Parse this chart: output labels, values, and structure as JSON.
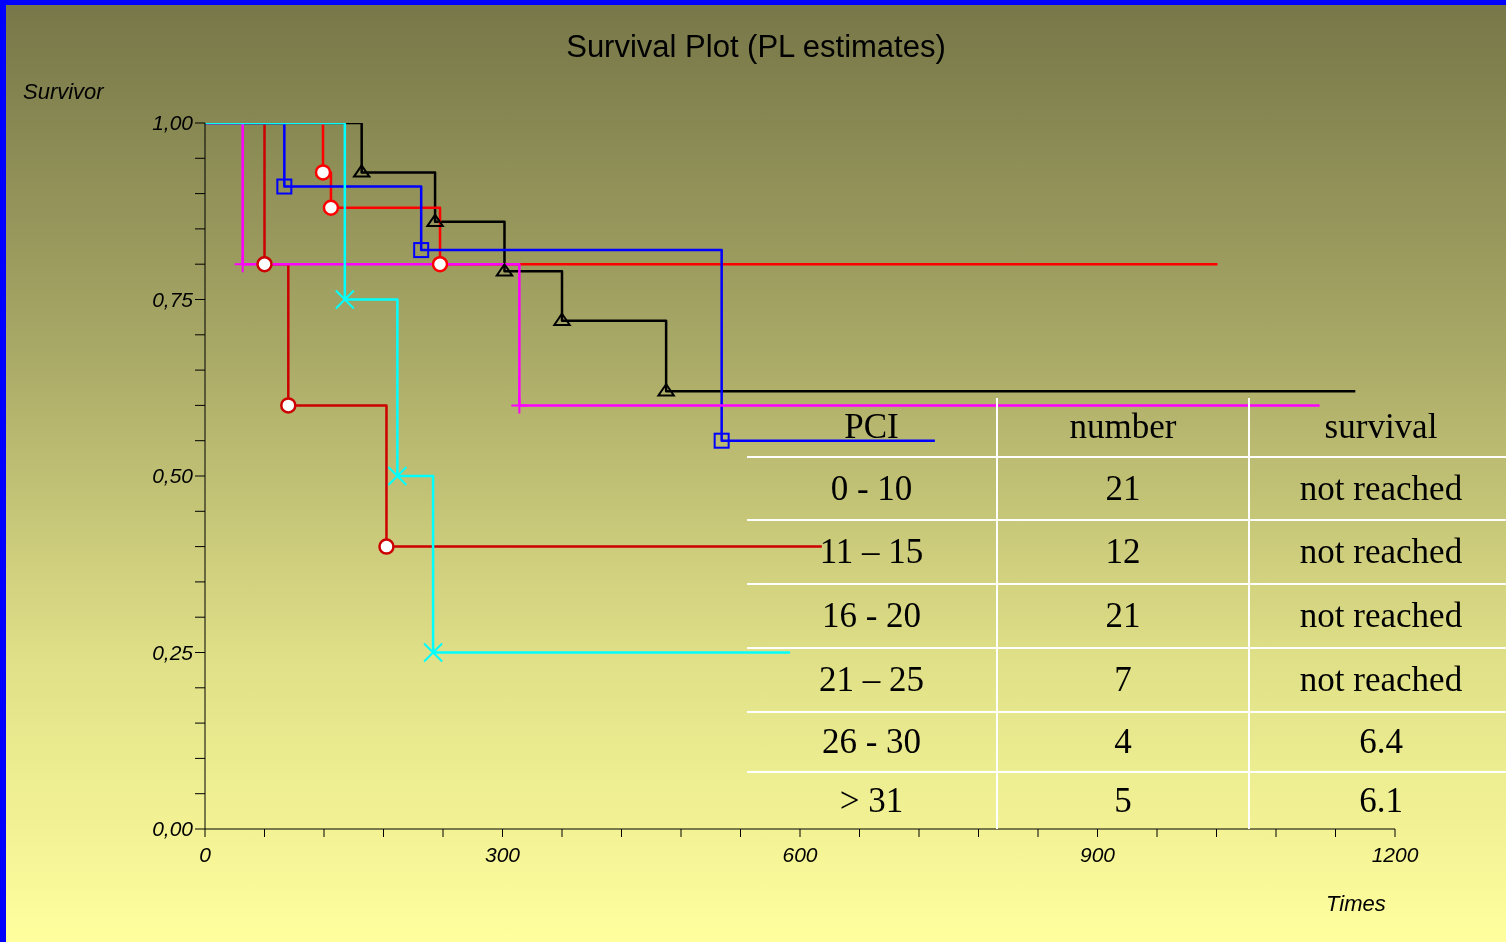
{
  "chart_data": {
    "type": "step",
    "title": "Survival Plot (PL estimates)",
    "xlabel": "Times",
    "ylabel": "Survivor",
    "xlim": [
      0,
      1200
    ],
    "ylim": [
      0,
      1
    ],
    "xticks": [
      0,
      {
        "value": 60,
        "label": null
      },
      {
        "value": 120,
        "label": null
      },
      {
        "value": 180,
        "label": null
      },
      {
        "value": 240,
        "label": null
      },
      300,
      {
        "value": 360,
        "label": null
      },
      {
        "value": 420,
        "label": null
      },
      {
        "value": 480,
        "label": null
      },
      {
        "value": 540,
        "label": null
      },
      600,
      {
        "value": 660,
        "label": null
      },
      {
        "value": 720,
        "label": null
      },
      {
        "value": 780,
        "label": null
      },
      {
        "value": 840,
        "label": null
      },
      900,
      {
        "value": 960,
        "label": null
      },
      {
        "value": 1020,
        "label": null
      },
      {
        "value": 1080,
        "label": null
      },
      {
        "value": 1140,
        "label": null
      },
      1200
    ],
    "yticks": [
      {
        "value": 0,
        "label": "0,00"
      },
      {
        "value": 0.05,
        "label": null
      },
      {
        "value": 0.1,
        "label": null
      },
      {
        "value": 0.15,
        "label": null
      },
      {
        "value": 0.2,
        "label": null
      },
      {
        "value": 0.25,
        "label": "0,25"
      },
      {
        "value": 0.3,
        "label": null
      },
      {
        "value": 0.35,
        "label": null
      },
      {
        "value": 0.4,
        "label": null
      },
      {
        "value": 0.45,
        "label": null
      },
      {
        "value": 0.5,
        "label": "0,50"
      },
      {
        "value": 0.55,
        "label": null
      },
      {
        "value": 0.6,
        "label": null
      },
      {
        "value": 0.65,
        "label": null
      },
      {
        "value": 0.7,
        "label": null
      },
      {
        "value": 0.75,
        "label": "0,75"
      },
      {
        "value": 0.8,
        "label": null
      },
      {
        "value": 0.85,
        "label": null
      },
      {
        "value": 0.9,
        "label": null
      },
      {
        "value": 0.95,
        "label": null
      },
      {
        "value": 1,
        "label": "1,00"
      }
    ],
    "grid": false,
    "legend": false,
    "line_style": "solid",
    "series": [
      {
        "color": "#000000",
        "marker": "triangle",
        "x": [
          0,
          158,
          232,
          302,
          360,
          465,
          1160
        ],
        "values": [
          1,
          0.93,
          0.86,
          0.79,
          0.72,
          0.62,
          0.62
        ]
      },
      {
        "color": "#ff0000",
        "marker": "circle",
        "x": [
          0,
          119,
          127,
          237,
          1021
        ],
        "values": [
          1,
          0.93,
          0.88,
          0.8,
          0.8
        ]
      },
      {
        "color": "#cc0000",
        "marker": "circle",
        "x": [
          0,
          60,
          84,
          183,
          622
        ],
        "values": [
          1,
          0.8,
          0.6,
          0.4,
          0.4
        ]
      },
      {
        "color": "#0000ff",
        "marker": "square",
        "x": [
          0,
          80,
          218,
          521,
          736
        ],
        "values": [
          1,
          0.91,
          0.82,
          0.55,
          0.55
        ]
      },
      {
        "color": "#ff00ff",
        "marker": "plus",
        "x": [
          0,
          38,
          317,
          1124
        ],
        "values": [
          1,
          0.8,
          0.6,
          0.6
        ]
      },
      {
        "color": "#00ffff",
        "marker": "cross",
        "x": [
          0,
          141,
          194,
          230,
          590
        ],
        "values": [
          1,
          0.75,
          0.5,
          0.25,
          0.25
        ]
      }
    ],
    "annotations": [
      "PCI",
      "number",
      "survival",
      "0 - 10",
      "21",
      "not reached",
      "11 – 15",
      "12",
      "not reached",
      "16 - 20",
      "21",
      "not reached",
      "21 – 25",
      "7",
      "not reached",
      "26 - 30",
      "4",
      "6.4",
      "> 31",
      "5",
      "6.1"
    ]
  }
}
